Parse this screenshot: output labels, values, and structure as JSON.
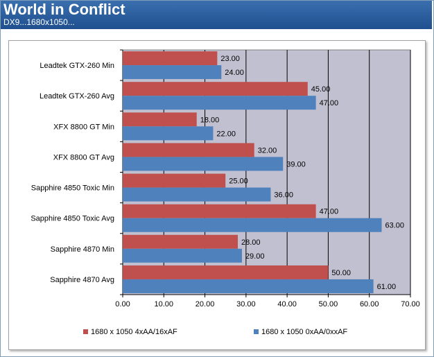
{
  "header": {
    "title": "World in Conflict",
    "subtitle": "DX9...1680x1050..."
  },
  "chart_data": {
    "type": "bar",
    "orientation": "horizontal",
    "categories": [
      "Leadtek GTX-260 Min",
      "Leadtek GTX-260 Avg",
      "XFX 8800 GT Min",
      "XFX 8800 GT Avg",
      "Sapphire 4850 Toxic Min",
      "Sapphire 4850 Toxic Avg",
      "Sapphire 4870 Min",
      "Sapphire 4870 Avg"
    ],
    "series": [
      {
        "name": "1680 x 1050 4xAA/16xAF",
        "color": "#c0504d",
        "values": [
          23,
          45,
          18,
          32,
          25,
          47,
          28,
          50
        ]
      },
      {
        "name": "1680 x 1050 0xAA/0xxAF",
        "color": "#4f81bd",
        "values": [
          24,
          47,
          22,
          39,
          36,
          63,
          29,
          61
        ]
      }
    ],
    "xlim": [
      0,
      70
    ],
    "xticks": [
      0,
      10,
      20,
      30,
      40,
      50,
      60,
      70
    ],
    "tick_format_decimals": 2,
    "label_format_decimals": 2,
    "grid": true,
    "plot_background": "#c0c0d0",
    "legend_position": "bottom"
  }
}
